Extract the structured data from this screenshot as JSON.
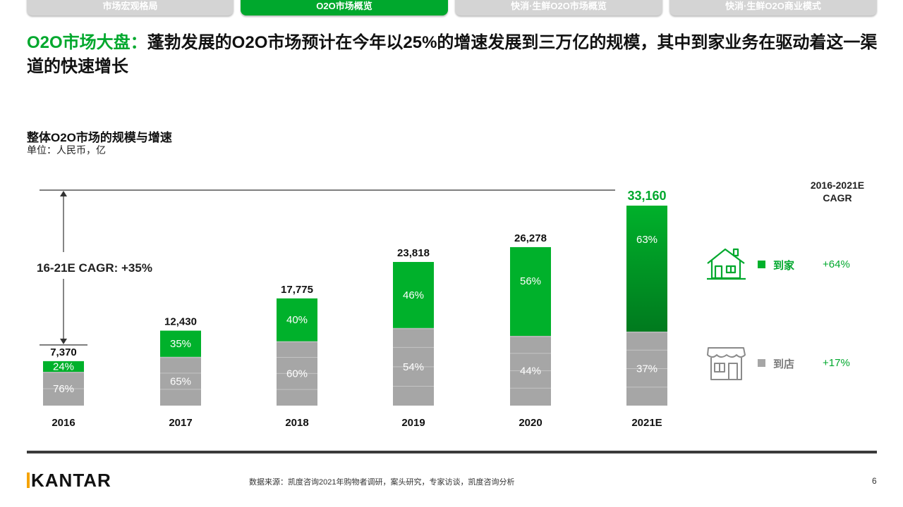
{
  "tabs": [
    {
      "label": "市场宏观格局",
      "active": false
    },
    {
      "label": "O2O市场概览",
      "active": true
    },
    {
      "label": "快消·生鲜O2O市场概览",
      "active": false
    },
    {
      "label": "快消·生鲜O2O商业模式",
      "active": false
    }
  ],
  "headline": {
    "highlight": "O2O市场大盘：",
    "text": "蓬勃发展的O2O市场预计在今年以25%的增速发展到三万亿的规模，其中到家业务在驱动着这一渠道的快速增长"
  },
  "chart_title": "整体O2O市场的规模与增速",
  "chart_unit": "单位：人民币，亿",
  "chart_data": {
    "type": "bar",
    "stacked": true,
    "categories": [
      "2016",
      "2017",
      "2018",
      "2019",
      "2020",
      "2021E"
    ],
    "totals": [
      7370,
      12430,
      17775,
      23818,
      26278,
      33160
    ],
    "total_labels": [
      "7,370",
      "12,430",
      "17,775",
      "23,818",
      "26,278",
      "33,160"
    ],
    "series": [
      {
        "name": "到店",
        "color": "#a6a6a6",
        "share_pct": [
          76,
          65,
          60,
          54,
          44,
          37
        ],
        "labels": [
          "76%",
          "65%",
          "60%",
          "54%",
          "44%",
          "37%"
        ]
      },
      {
        "name": "到家",
        "color": "#00b12b",
        "share_pct": [
          24,
          35,
          40,
          46,
          56,
          63
        ],
        "labels": [
          "24%",
          "35%",
          "40%",
          "46%",
          "56%",
          "63%"
        ]
      }
    ],
    "ylim": [
      0,
      33160
    ],
    "grid": false,
    "annotation": "16-21E CAGR: +35%"
  },
  "cagr_header": "2016-2021E CAGR",
  "legend": [
    {
      "name": "到家",
      "cagr": "+64%",
      "icon": "house-icon",
      "color": "#00b12b"
    },
    {
      "name": "到店",
      "cagr": "+17%",
      "icon": "store-icon",
      "color": "#a6a6a6"
    }
  ],
  "footer": {
    "logo": "KANTAR",
    "source": "数据来源：凯度咨询2021年购物者调研，案头研究，专家访谈，凯度咨询分析",
    "page": "6"
  }
}
